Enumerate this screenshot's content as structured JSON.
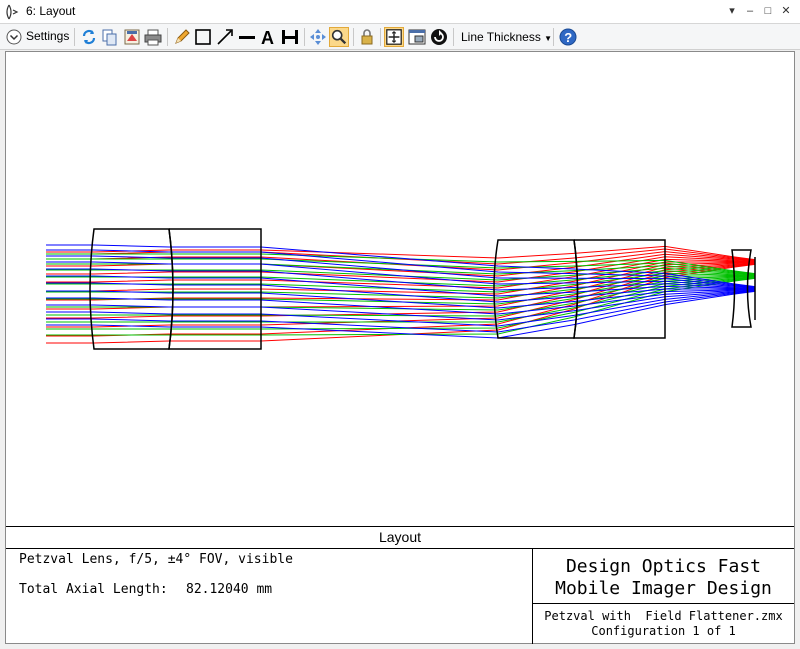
{
  "window": {
    "title": "6: Layout"
  },
  "toolbar": {
    "settings_label": "Settings",
    "line_thickness_label": "Line Thickness"
  },
  "info": {
    "section_title": "Layout",
    "lens_description": "Petzval Lens, f/5, ±4° FOV, visible",
    "axial_length_label": "Total Axial Length:",
    "axial_length_value": "82.12040 mm",
    "design_title_line1": "Design Optics Fast",
    "design_title_line2": "Mobile Imager Design",
    "file_name": "Petzval with  Field Flattener.zmx",
    "configuration": "Configuration 1 of 1"
  },
  "colors": {
    "field_1": "#0000ff",
    "field_2": "#00c000",
    "field_3": "#ff0000",
    "toolbar_active": "#fbd88a"
  }
}
